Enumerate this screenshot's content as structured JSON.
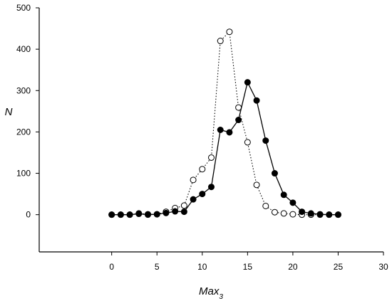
{
  "chart_data": {
    "type": "line",
    "xlabel": "Max",
    "xlabel_subscript": "3",
    "ylabel": "N",
    "xlim": [
      -8,
      30
    ],
    "ylim": [
      -90,
      500
    ],
    "x_ticks": [
      0,
      5,
      10,
      15,
      20,
      25,
      30
    ],
    "y_ticks": [
      0,
      100,
      200,
      300,
      400,
      500
    ],
    "grid": false,
    "series": [
      {
        "style": "filled-circles-solid-line",
        "x": [
          0,
          1,
          2,
          3,
          4,
          5,
          6,
          7,
          8,
          9,
          10,
          11,
          12,
          13,
          14,
          15,
          16,
          17,
          18,
          19,
          20,
          21,
          22,
          23,
          24,
          25
        ],
        "values": [
          0,
          0,
          0,
          2,
          0,
          1,
          4,
          8,
          7,
          37,
          50,
          67,
          205,
          199,
          229,
          320,
          276,
          179,
          100,
          48,
          29,
          7,
          3,
          1,
          0,
          0
        ]
      },
      {
        "style": "open-circles-dotted-line",
        "x": [
          0,
          1,
          2,
          3,
          4,
          5,
          6,
          7,
          8,
          9,
          10,
          11,
          12,
          13,
          14,
          15,
          16,
          17,
          18,
          19,
          20,
          21,
          22,
          23,
          24,
          25
        ],
        "values": [
          0,
          0,
          0,
          3,
          1,
          1,
          7,
          16,
          22,
          84,
          110,
          138,
          420,
          442,
          259,
          175,
          72,
          21,
          6,
          3,
          1,
          0,
          0,
          0,
          0,
          0
        ]
      }
    ]
  }
}
